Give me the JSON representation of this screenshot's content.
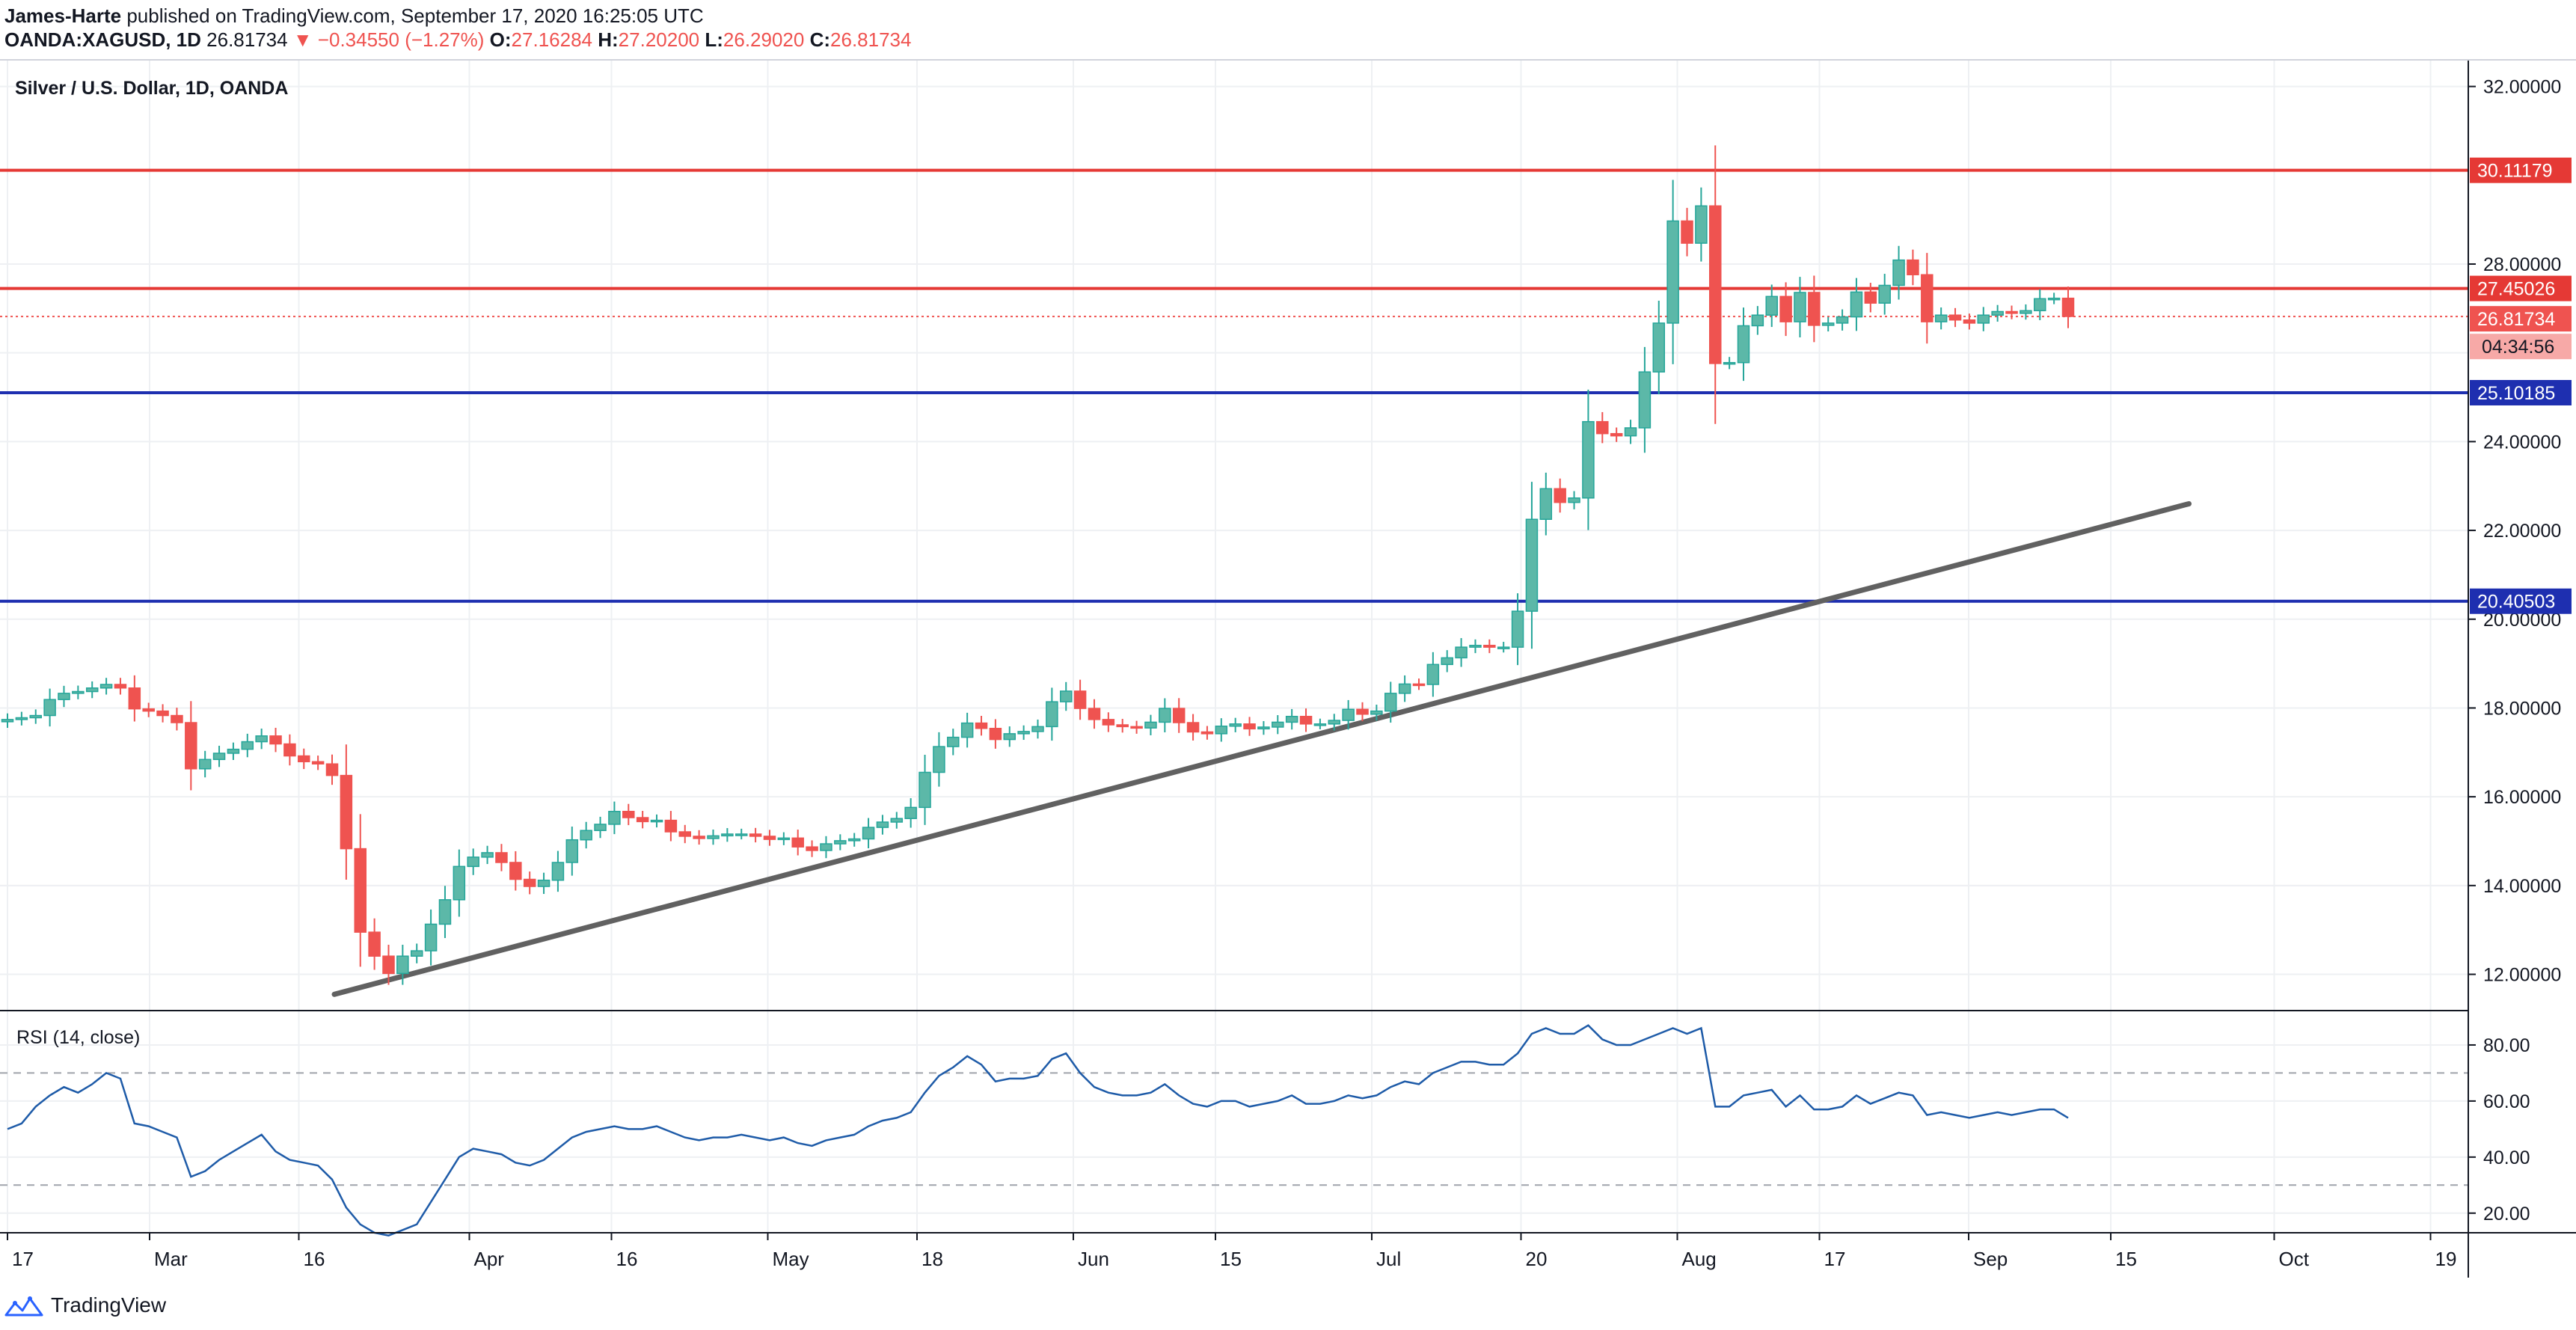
{
  "header": {
    "author": "James-Harte",
    "published_text": "published on TradingView.com, September 17, 2020 16:25:05 UTC",
    "symbol": "OANDA:XAGUSD, 1D",
    "last": "26.81734",
    "change": "▼ −0.34550 (−1.27%)",
    "open_label": "O:",
    "open": "27.16284",
    "high_label": "H:",
    "high": "27.20200",
    "low_label": "L:",
    "low": "26.29020",
    "close_label": "C:",
    "close": "26.81734"
  },
  "chart_data": {
    "type": "candlestick",
    "title": "Silver / U.S. Dollar, 1D, OANDA",
    "ylim": [
      11.2,
      32.6
    ],
    "y_ticks": [
      "32.00000",
      "28.00000",
      "24.00000",
      "22.00000",
      "20.00000",
      "18.00000",
      "16.00000",
      "14.00000",
      "12.00000"
    ],
    "y_tick_values": [
      32,
      28,
      24,
      22,
      20,
      18,
      16,
      14,
      12
    ],
    "x_ticks": [
      "17",
      "Mar",
      "16",
      "Apr",
      "16",
      "May",
      "18",
      "Jun",
      "15",
      "Jul",
      "20",
      "Aug",
      "17",
      "Sep",
      "15",
      "Oct",
      "19"
    ],
    "x_tick_index": [
      0,
      20,
      41,
      65,
      85,
      107,
      128,
      150,
      170,
      192,
      213,
      235,
      255,
      276,
      296,
      319,
      341
    ],
    "n_bars": 350,
    "levels": [
      {
        "name": "resistance-high",
        "value": 30.11179,
        "label": "30.11179",
        "color": "#e53935"
      },
      {
        "name": "resistance",
        "value": 27.45026,
        "label": "27.45026",
        "color": "#e53935"
      },
      {
        "name": "support",
        "value": 25.10185,
        "label": "25.10185",
        "color": "#1e2fb0"
      },
      {
        "name": "support-low",
        "value": 20.40503,
        "label": "20.40503",
        "color": "#1e2fb0"
      }
    ],
    "last_price": {
      "value": 26.81734,
      "label": "26.81734",
      "countdown": "04:34:56",
      "color": "#ef5350"
    },
    "trendline": {
      "from": {
        "i": 46,
        "v": 11.55
      },
      "to": {
        "i": 307,
        "v": 22.6
      }
    },
    "closes": [
      17.74,
      17.78,
      17.83,
      18.19,
      18.33,
      18.37,
      18.45,
      18.53,
      18.45,
      17.98,
      17.93,
      17.83,
      17.67,
      16.63,
      16.84,
      16.98,
      17.07,
      17.24,
      17.37,
      17.19,
      16.92,
      16.79,
      16.74,
      16.48,
      14.83,
      12.95,
      12.41,
      12.02,
      12.41,
      12.53,
      13.13,
      13.68,
      14.43,
      14.64,
      14.74,
      14.52,
      14.14,
      13.98,
      14.12,
      14.52,
      15.03,
      15.24,
      15.38,
      15.67,
      15.53,
      15.44,
      15.47,
      15.21,
      15.11,
      15.06,
      15.12,
      15.16,
      15.16,
      15.11,
      15.04,
      15.07,
      14.87,
      14.79,
      14.94,
      15.01,
      15.05,
      15.31,
      15.43,
      15.51,
      15.76,
      16.55,
      17.13,
      17.34,
      17.66,
      17.54,
      17.29,
      17.42,
      17.47,
      17.58,
      18.14,
      18.38,
      17.99,
      17.74,
      17.62,
      17.58,
      17.55,
      17.68,
      17.99,
      17.67,
      17.46,
      17.42,
      17.59,
      17.64,
      17.53,
      17.57,
      17.68,
      17.81,
      17.64,
      17.64,
      17.72,
      17.97,
      17.86,
      17.93,
      18.33,
      18.54,
      18.53,
      18.98,
      19.13,
      19.37,
      19.41,
      19.37,
      19.37,
      20.18,
      22.25,
      22.94,
      22.63,
      22.73,
      24.45,
      24.18,
      24.13,
      24.31,
      25.57,
      26.67,
      28.97,
      28.47,
      29.31,
      25.76,
      25.78,
      26.61,
      26.85,
      27.27,
      26.7,
      27.36,
      26.62,
      26.67,
      26.81,
      27.37,
      27.12,
      27.52,
      28.09,
      27.76,
      26.7,
      26.85,
      26.74,
      26.67,
      26.85,
      26.93,
      26.89,
      26.95,
      27.22,
      27.23,
      26.82
    ],
    "rsi": {
      "label": "RSI (14, close)",
      "ylim": [
        13,
        92
      ],
      "ticks": [
        "80.00",
        "60.00",
        "40.00",
        "20.00"
      ],
      "tick_values": [
        80,
        60,
        40,
        20
      ],
      "bands": [
        70,
        30
      ],
      "values": [
        50,
        52,
        58,
        62,
        65,
        63,
        66,
        70,
        68,
        52,
        51,
        49,
        47,
        33,
        35,
        39,
        42,
        45,
        48,
        42,
        39,
        38,
        37,
        32,
        22,
        16,
        13,
        12,
        14,
        16,
        24,
        32,
        40,
        43,
        42,
        41,
        38,
        37,
        39,
        43,
        47,
        49,
        50,
        51,
        50,
        50,
        51,
        49,
        47,
        46,
        47,
        47,
        48,
        47,
        46,
        47,
        45,
        44,
        46,
        47,
        48,
        51,
        53,
        54,
        56,
        63,
        69,
        72,
        76,
        73,
        67,
        68,
        68,
        69,
        75,
        77,
        70,
        65,
        63,
        62,
        62,
        63,
        66,
        62,
        59,
        58,
        60,
        60,
        58,
        59,
        60,
        62,
        59,
        59,
        60,
        62,
        61,
        62,
        65,
        67,
        66,
        70,
        72,
        74,
        74,
        73,
        73,
        77,
        84,
        86,
        84,
        84,
        87,
        82,
        80,
        80,
        82,
        84,
        86,
        84,
        86,
        58,
        58,
        62,
        63,
        64,
        58,
        62,
        57,
        57,
        58,
        62,
        59,
        61,
        63,
        62,
        55,
        56,
        55,
        54,
        55,
        56,
        55,
        56,
        57,
        57,
        54
      ]
    }
  },
  "price_scale": {
    "last_label": "26.81734",
    "countdown": "04:34:56"
  },
  "footer": {
    "brand": "TradingView"
  },
  "colors": {
    "up": "#26a69a",
    "up_fill": "#5cb8a8",
    "down": "#ef5350",
    "trend": "#616161",
    "rsi_line": "#1e5ba8",
    "grid": "#eef0f3",
    "axis_text": "#131722"
  }
}
